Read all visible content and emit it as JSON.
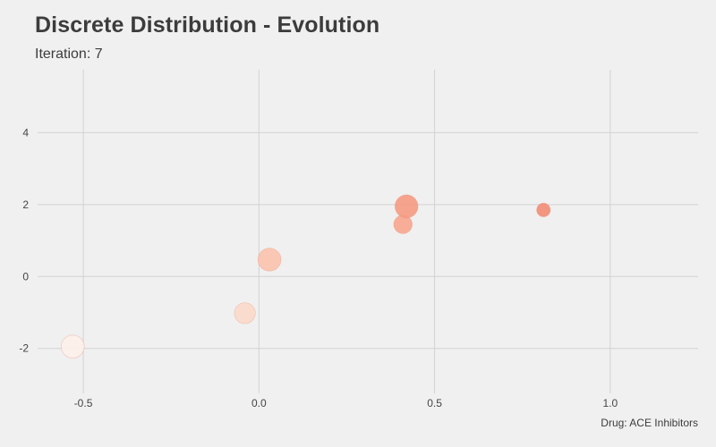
{
  "chart_data": {
    "type": "scatter",
    "title": "Discrete Distribution - Evolution",
    "subtitle": "Iteration: 7",
    "caption": "Drug: ACE Inhibitors",
    "xlabel": "",
    "ylabel": "",
    "xlim": [
      -0.63,
      1.25
    ],
    "ylim": [
      -3.25,
      5.75
    ],
    "x_ticks": [
      -0.5,
      0.0,
      0.5,
      1.0
    ],
    "x_tick_labels": [
      "-0.5",
      "0.0",
      "0.5",
      "1.0"
    ],
    "y_ticks": [
      -2,
      0,
      2,
      4
    ],
    "y_tick_labels": [
      "-2",
      "0",
      "2",
      "4"
    ],
    "grid": true,
    "points": [
      {
        "x": -0.53,
        "y": -1.95,
        "size": 0.85,
        "color": "#fdf0ea"
      },
      {
        "x": -0.04,
        "y": -1.02,
        "size": 0.7,
        "color": "#fbd9ca"
      },
      {
        "x": 0.03,
        "y": 0.47,
        "size": 0.85,
        "color": "#f9c2ac"
      },
      {
        "x": 0.41,
        "y": 1.45,
        "size": 0.55,
        "color": "#f7a58e"
      },
      {
        "x": 0.42,
        "y": 1.95,
        "size": 0.85,
        "color": "#f59a82"
      },
      {
        "x": 0.81,
        "y": 1.85,
        "size": 0.3,
        "color": "#f28c74"
      }
    ]
  }
}
